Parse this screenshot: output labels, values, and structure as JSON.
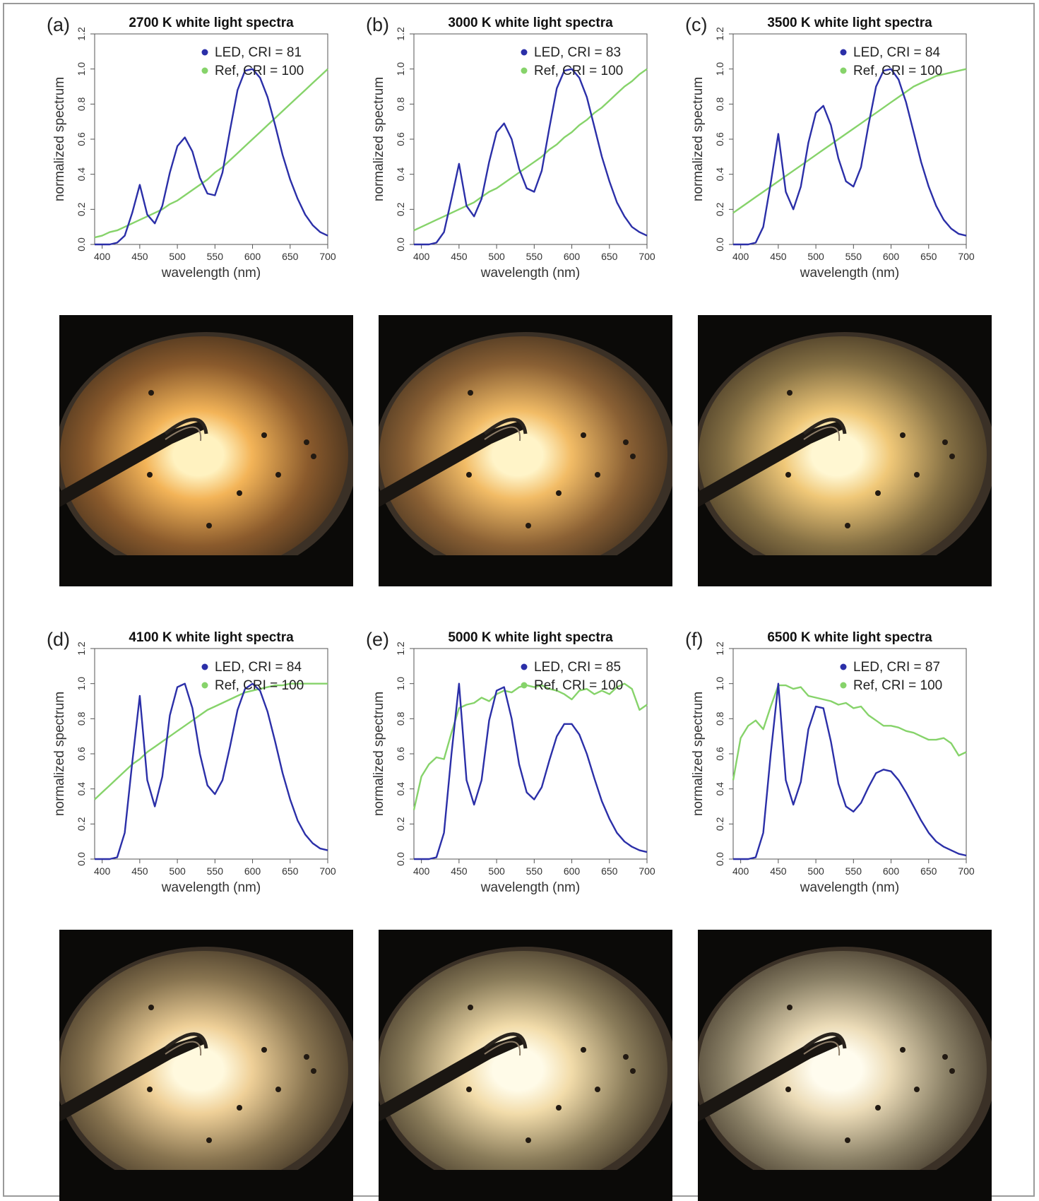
{
  "colors": {
    "led": "#2b2fa8",
    "ref": "#86d36a",
    "axis": "#555555"
  },
  "chart_data": [
    {
      "panel": "(a)",
      "type": "line",
      "title": "2700 K white light spectra",
      "xlabel": "wavelength (nm)",
      "ylabel": "normalized spectrum",
      "xlim": [
        390,
        700
      ],
      "ylim": [
        0,
        1.2
      ],
      "xticks": [
        "400",
        "450",
        "500",
        "550",
        "600",
        "650",
        "700"
      ],
      "yticks": [
        "0.0",
        "0.2",
        "0.4",
        "0.6",
        "0.8",
        "1.0",
        "1.2"
      ],
      "legend_position": "top-right",
      "x": [
        390,
        400,
        410,
        420,
        430,
        440,
        450,
        460,
        470,
        480,
        490,
        500,
        510,
        520,
        530,
        540,
        550,
        560,
        570,
        580,
        590,
        600,
        610,
        620,
        630,
        640,
        650,
        660,
        670,
        680,
        690,
        700
      ],
      "series": [
        {
          "name": "LED, CRI = 81",
          "color": "#2b2fa8",
          "values": [
            0.0,
            0.0,
            0.0,
            0.01,
            0.05,
            0.18,
            0.34,
            0.17,
            0.12,
            0.22,
            0.41,
            0.56,
            0.61,
            0.53,
            0.38,
            0.29,
            0.28,
            0.41,
            0.65,
            0.88,
            0.99,
            1.0,
            0.95,
            0.84,
            0.68,
            0.51,
            0.37,
            0.26,
            0.17,
            0.11,
            0.07,
            0.05
          ]
        },
        {
          "name": "Ref, CRI = 100",
          "color": "#86d36a",
          "values": [
            0.04,
            0.05,
            0.07,
            0.08,
            0.1,
            0.12,
            0.14,
            0.16,
            0.18,
            0.2,
            0.23,
            0.25,
            0.28,
            0.31,
            0.34,
            0.37,
            0.41,
            0.44,
            0.48,
            0.52,
            0.56,
            0.6,
            0.64,
            0.68,
            0.72,
            0.76,
            0.8,
            0.84,
            0.88,
            0.92,
            0.96,
            1.0
          ]
        }
      ]
    },
    {
      "panel": "(b)",
      "type": "line",
      "title": "3000 K white light spectra",
      "xlabel": "wavelength (nm)",
      "ylabel": "normalized spectrum",
      "xlim": [
        390,
        700
      ],
      "ylim": [
        0,
        1.2
      ],
      "xticks": [
        "400",
        "450",
        "500",
        "550",
        "600",
        "650",
        "700"
      ],
      "yticks": [
        "0.0",
        "0.2",
        "0.4",
        "0.6",
        "0.8",
        "1.0",
        "1.2"
      ],
      "legend_position": "top-right",
      "x": [
        390,
        400,
        410,
        420,
        430,
        440,
        450,
        460,
        470,
        480,
        490,
        500,
        510,
        520,
        530,
        540,
        550,
        560,
        570,
        580,
        590,
        600,
        610,
        620,
        630,
        640,
        650,
        660,
        670,
        680,
        690,
        700
      ],
      "series": [
        {
          "name": "LED, CRI = 83",
          "color": "#2b2fa8",
          "values": [
            0.0,
            0.0,
            0.0,
            0.01,
            0.07,
            0.26,
            0.46,
            0.22,
            0.16,
            0.26,
            0.47,
            0.64,
            0.69,
            0.6,
            0.43,
            0.32,
            0.3,
            0.42,
            0.66,
            0.89,
            0.99,
            1.0,
            0.95,
            0.84,
            0.67,
            0.5,
            0.36,
            0.24,
            0.16,
            0.1,
            0.07,
            0.05
          ]
        },
        {
          "name": "Ref, CRI = 100",
          "color": "#86d36a",
          "values": [
            0.08,
            0.1,
            0.12,
            0.14,
            0.16,
            0.18,
            0.2,
            0.22,
            0.24,
            0.27,
            0.3,
            0.32,
            0.35,
            0.38,
            0.41,
            0.44,
            0.47,
            0.5,
            0.54,
            0.57,
            0.61,
            0.64,
            0.68,
            0.71,
            0.75,
            0.78,
            0.82,
            0.86,
            0.9,
            0.93,
            0.97,
            1.0
          ]
        }
      ]
    },
    {
      "panel": "(c)",
      "type": "line",
      "title": "3500 K white light spectra",
      "xlabel": "wavelength (nm)",
      "ylabel": "normalized spectrum",
      "xlim": [
        390,
        700
      ],
      "ylim": [
        0,
        1.2
      ],
      "xticks": [
        "400",
        "450",
        "500",
        "550",
        "600",
        "650",
        "700"
      ],
      "yticks": [
        "0.0",
        "0.2",
        "0.4",
        "0.6",
        "0.8",
        "1.0",
        "1.2"
      ],
      "legend_position": "top-right",
      "x": [
        390,
        400,
        410,
        420,
        430,
        440,
        450,
        460,
        470,
        480,
        490,
        500,
        510,
        520,
        530,
        540,
        550,
        560,
        570,
        580,
        590,
        600,
        610,
        620,
        630,
        640,
        650,
        660,
        670,
        680,
        690,
        700
      ],
      "series": [
        {
          "name": "LED, CRI = 84",
          "color": "#2b2fa8",
          "values": [
            0.0,
            0.0,
            0.0,
            0.01,
            0.1,
            0.35,
            0.63,
            0.3,
            0.2,
            0.33,
            0.58,
            0.75,
            0.79,
            0.68,
            0.49,
            0.36,
            0.33,
            0.44,
            0.68,
            0.9,
            0.99,
            1.0,
            0.94,
            0.81,
            0.64,
            0.47,
            0.33,
            0.22,
            0.14,
            0.09,
            0.06,
            0.05
          ]
        },
        {
          "name": "Ref, CRI = 100",
          "color": "#86d36a",
          "values": [
            0.18,
            0.21,
            0.24,
            0.27,
            0.3,
            0.33,
            0.36,
            0.39,
            0.42,
            0.45,
            0.48,
            0.51,
            0.54,
            0.57,
            0.6,
            0.63,
            0.66,
            0.69,
            0.72,
            0.75,
            0.78,
            0.81,
            0.84,
            0.87,
            0.9,
            0.92,
            0.94,
            0.96,
            0.97,
            0.98,
            0.99,
            1.0
          ]
        }
      ]
    },
    {
      "panel": "(d)",
      "type": "line",
      "title": "4100 K white light spectra",
      "xlabel": "wavelength (nm)",
      "ylabel": "normalized spectrum",
      "xlim": [
        390,
        700
      ],
      "ylim": [
        0,
        1.2
      ],
      "xticks": [
        "400",
        "450",
        "500",
        "550",
        "600",
        "650",
        "700"
      ],
      "yticks": [
        "0.0",
        "0.2",
        "0.4",
        "0.6",
        "0.8",
        "1.0",
        "1.2"
      ],
      "legend_position": "top-right",
      "x": [
        390,
        400,
        410,
        420,
        430,
        440,
        450,
        460,
        470,
        480,
        490,
        500,
        510,
        520,
        530,
        540,
        550,
        560,
        570,
        580,
        590,
        600,
        610,
        620,
        630,
        640,
        650,
        660,
        670,
        680,
        690,
        700
      ],
      "series": [
        {
          "name": "LED, CRI = 84",
          "color": "#2b2fa8",
          "values": [
            0.0,
            0.0,
            0.0,
            0.01,
            0.15,
            0.55,
            0.93,
            0.45,
            0.3,
            0.47,
            0.82,
            0.98,
            1.0,
            0.86,
            0.6,
            0.42,
            0.37,
            0.45,
            0.64,
            0.85,
            0.97,
            1.0,
            0.96,
            0.84,
            0.67,
            0.49,
            0.34,
            0.22,
            0.14,
            0.09,
            0.06,
            0.05
          ]
        },
        {
          "name": "Ref, CRI = 100",
          "color": "#86d36a",
          "values": [
            0.34,
            0.38,
            0.42,
            0.46,
            0.5,
            0.54,
            0.57,
            0.61,
            0.64,
            0.67,
            0.7,
            0.73,
            0.76,
            0.79,
            0.82,
            0.85,
            0.87,
            0.89,
            0.91,
            0.93,
            0.95,
            0.96,
            0.97,
            0.98,
            0.99,
            0.99,
            1.0,
            1.0,
            1.0,
            1.0,
            1.0,
            1.0
          ]
        }
      ]
    },
    {
      "panel": "(e)",
      "type": "line",
      "title": "5000 K white light spectra",
      "xlabel": "wavelength (nm)",
      "ylabel": "normalized spectrum",
      "xlim": [
        390,
        700
      ],
      "ylim": [
        0,
        1.2
      ],
      "xticks": [
        "400",
        "450",
        "500",
        "550",
        "600",
        "650",
        "700"
      ],
      "yticks": [
        "0.0",
        "0.2",
        "0.4",
        "0.6",
        "0.8",
        "1.0",
        "1.2"
      ],
      "legend_position": "top-right",
      "x": [
        390,
        400,
        410,
        420,
        430,
        440,
        450,
        460,
        470,
        480,
        490,
        500,
        510,
        520,
        530,
        540,
        550,
        560,
        570,
        580,
        590,
        600,
        610,
        620,
        630,
        640,
        650,
        660,
        670,
        680,
        690,
        700
      ],
      "series": [
        {
          "name": "LED, CRI = 85",
          "color": "#2b2fa8",
          "values": [
            0.0,
            0.0,
            0.0,
            0.01,
            0.15,
            0.6,
            1.0,
            0.45,
            0.31,
            0.45,
            0.79,
            0.96,
            0.98,
            0.8,
            0.54,
            0.38,
            0.34,
            0.41,
            0.56,
            0.7,
            0.77,
            0.77,
            0.71,
            0.6,
            0.46,
            0.33,
            0.23,
            0.15,
            0.1,
            0.07,
            0.05,
            0.04
          ]
        },
        {
          "name": "Ref, CRI = 100",
          "color": "#86d36a",
          "values": [
            0.28,
            0.47,
            0.54,
            0.58,
            0.57,
            0.72,
            0.86,
            0.88,
            0.89,
            0.92,
            0.9,
            0.94,
            0.96,
            0.95,
            0.98,
            0.99,
            0.98,
            0.99,
            0.97,
            0.96,
            0.94,
            0.91,
            0.96,
            0.97,
            0.94,
            0.96,
            0.94,
            0.98,
            1.0,
            0.97,
            0.85,
            0.88
          ]
        }
      ]
    },
    {
      "panel": "(f)",
      "type": "line",
      "title": "6500 K white light spectra",
      "xlabel": "wavelength (nm)",
      "ylabel": "normalized spectrum",
      "xlim": [
        390,
        700
      ],
      "ylim": [
        0,
        1.2
      ],
      "xticks": [
        "400",
        "450",
        "500",
        "550",
        "600",
        "650",
        "700"
      ],
      "yticks": [
        "0.0",
        "0.2",
        "0.4",
        "0.6",
        "0.8",
        "1.0",
        "1.2"
      ],
      "legend_position": "top-right",
      "x": [
        390,
        400,
        410,
        420,
        430,
        440,
        450,
        460,
        470,
        480,
        490,
        500,
        510,
        520,
        530,
        540,
        550,
        560,
        570,
        580,
        590,
        600,
        610,
        620,
        630,
        640,
        650,
        660,
        670,
        680,
        690,
        700
      ],
      "series": [
        {
          "name": "LED, CRI = 87",
          "color": "#2b2fa8",
          "values": [
            0.0,
            0.0,
            0.0,
            0.01,
            0.15,
            0.6,
            1.0,
            0.45,
            0.31,
            0.44,
            0.74,
            0.87,
            0.86,
            0.67,
            0.43,
            0.3,
            0.27,
            0.32,
            0.41,
            0.49,
            0.51,
            0.5,
            0.45,
            0.38,
            0.3,
            0.22,
            0.15,
            0.1,
            0.07,
            0.05,
            0.03,
            0.02
          ]
        },
        {
          "name": "Ref, CRI = 100",
          "color": "#86d36a",
          "values": [
            0.45,
            0.69,
            0.76,
            0.79,
            0.74,
            0.87,
            0.99,
            0.99,
            0.97,
            0.98,
            0.93,
            0.92,
            0.91,
            0.9,
            0.88,
            0.89,
            0.86,
            0.87,
            0.82,
            0.79,
            0.76,
            0.76,
            0.75,
            0.73,
            0.72,
            0.7,
            0.68,
            0.68,
            0.69,
            0.66,
            0.59,
            0.61
          ]
        }
      ]
    }
  ]
}
